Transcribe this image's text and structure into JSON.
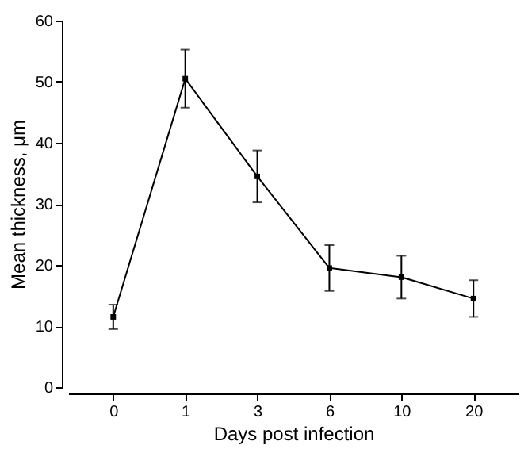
{
  "chart_data": {
    "type": "line",
    "xlabel": "Days post infection",
    "ylabel": "Mean thickness, μm",
    "categories": [
      "0",
      "1",
      "3",
      "6",
      "10",
      "20"
    ],
    "series": [
      {
        "color": "#000000",
        "values": [
          11.5,
          50.5,
          34.5,
          19.5,
          18,
          14.5
        ],
        "errors": [
          2,
          4.75,
          4.25,
          3.75,
          3.5,
          3
        ]
      }
    ],
    "ylim": [
      0,
      60
    ],
    "yticks": [
      0,
      10,
      20,
      30,
      40,
      50,
      60
    ],
    "grid": false,
    "marker": "square",
    "line_style": "solid"
  }
}
